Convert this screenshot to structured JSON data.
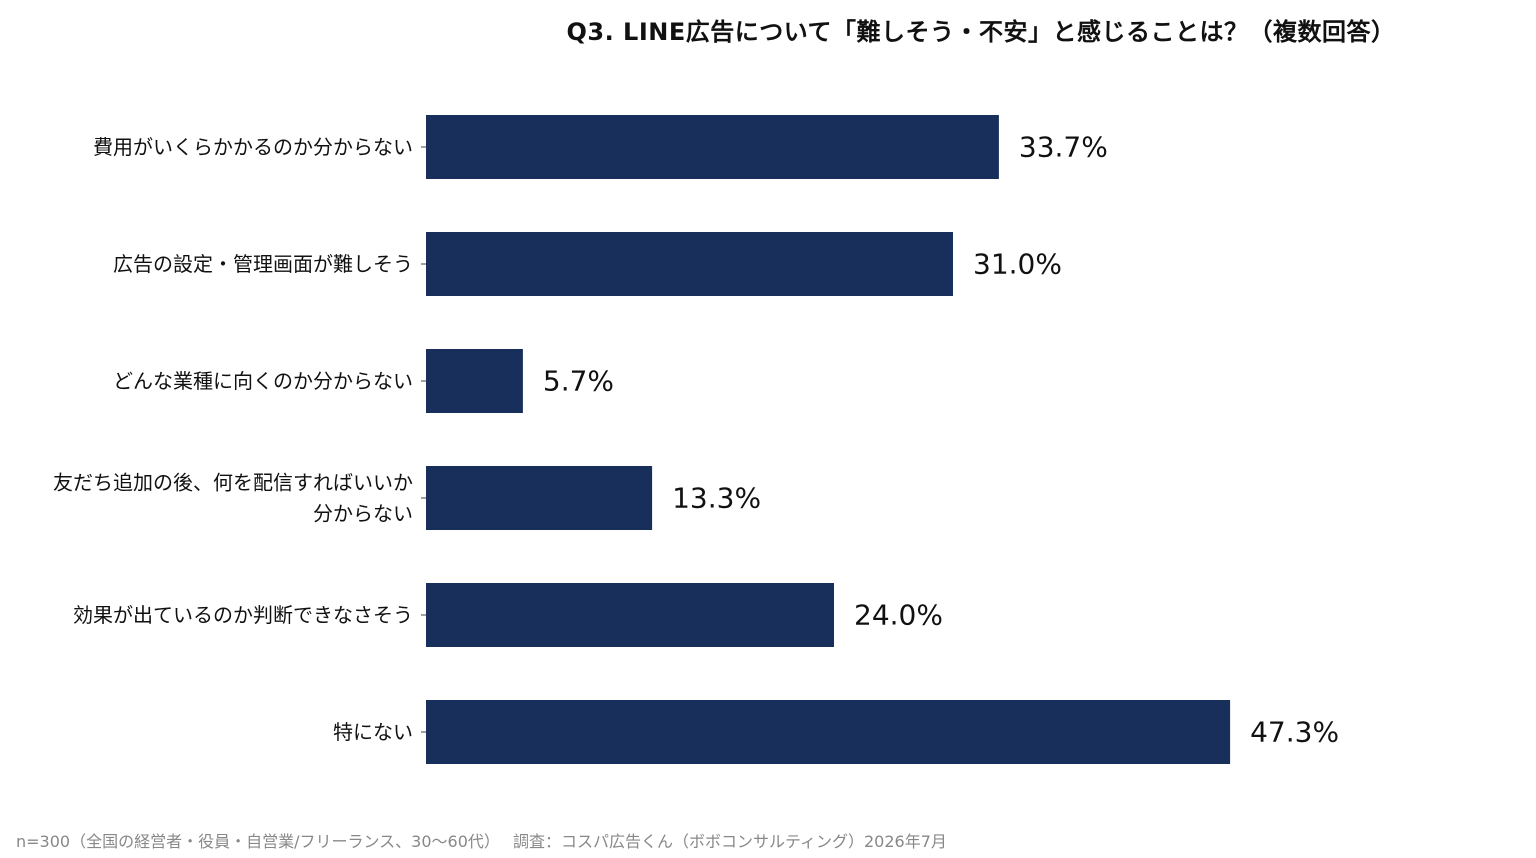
{
  "chart_data": {
    "type": "bar",
    "orientation": "horizontal",
    "title": "Q3. LINE広告について「難しそう・不安」と感じることは？（複数回答）",
    "categories": [
      [
        "費用がいくらかかるのか分からない"
      ],
      [
        "広告の設定・管理画面が難しそう"
      ],
      [
        "どんな業種に向くのか分からない"
      ],
      [
        "友だち追加の後、何を配信すればいいか",
        "分からない"
      ],
      [
        "効果が出ているのか判断できなさそう"
      ],
      [
        "特にない"
      ]
    ],
    "values": [
      33.7,
      31.0,
      5.7,
      13.3,
      24.0,
      47.3
    ],
    "value_labels": [
      "33.7%",
      "31.0%",
      "5.7%",
      "13.3%",
      "24.0%",
      "47.3%"
    ],
    "xlim": [
      0,
      50
    ],
    "bar_color": "#182f5c",
    "grid": false,
    "legend": false
  },
  "footnote": "n=300（全国の経営者・役員・自営業/フリーランス、30〜60代）　 調査：コスパ広告くん（ボボコンサルティング）2026年7月"
}
